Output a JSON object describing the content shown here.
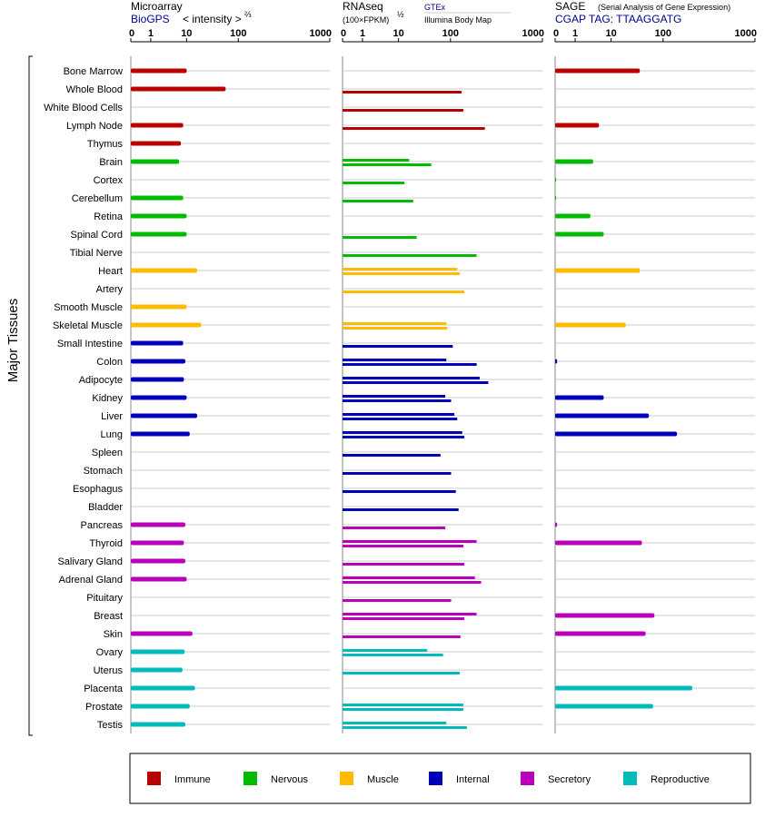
{
  "y_axis_label": "Major Tissues",
  "colors": {
    "Immune": "#bb0000",
    "Nervous": "#00bb00",
    "Muscle": "#ffbb00",
    "Internal": "#0000bb",
    "Secretory": "#bb00bb",
    "Reproductive": "#00bbbb"
  },
  "panels": [
    {
      "id": "microarray",
      "title": "Microarray",
      "subtitle": "BioGPS",
      "unit_label": "< intensity >",
      "unit_exponent": "⅔"
    },
    {
      "id": "rnaseq",
      "title": "RNAseq",
      "unit_label": "(100×FPKM)",
      "unit_exponent": "½",
      "source_top": "GTEx",
      "source_bottom": "Illumina Body Map"
    },
    {
      "id": "sage",
      "title": "SAGE",
      "note": "(Serial Analysis of Gene Expression)",
      "subtitle": "CGAP TAG: TTAAGGATG"
    }
  ],
  "ticks": [
    "0",
    "1",
    "10",
    "100",
    "1000"
  ],
  "legend": [
    {
      "label": "Immune",
      "color": "#bb0000"
    },
    {
      "label": "Nervous",
      "color": "#00bb00"
    },
    {
      "label": "Muscle",
      "color": "#ffbb00"
    },
    {
      "label": "Internal",
      "color": "#0000bb"
    },
    {
      "label": "Secretory",
      "color": "#bb00bb"
    },
    {
      "label": "Reproductive",
      "color": "#00bbbb"
    }
  ],
  "chart_data": {
    "type": "bar",
    "orientation": "horizontal",
    "x_scale": "log-like (0, 1, 10, 100, 1000)",
    "xlim": [
      0,
      1000
    ],
    "grid": true,
    "legend_position": "bottom",
    "tissues": [
      {
        "name": "Bone Marrow",
        "group": "Immune",
        "microarray": 4,
        "rnaseq": [],
        "sage": 12
      },
      {
        "name": "Whole Blood",
        "group": "Immune",
        "microarray": 18,
        "rnaseq": [
          45
        ],
        "sage": null
      },
      {
        "name": "White Blood Cells",
        "group": "Immune",
        "microarray": null,
        "rnaseq": [
          48
        ],
        "sage": null
      },
      {
        "name": "Lymph Node",
        "group": "Immune",
        "microarray": 3.5,
        "rnaseq": [
          110
        ],
        "sage": 2.5
      },
      {
        "name": "Thymus",
        "group": "Immune",
        "microarray": 3.2,
        "rnaseq": [],
        "sage": null
      },
      {
        "name": "Brain",
        "group": "Nervous",
        "microarray": 3,
        "rnaseq": [
          6,
          14
        ],
        "sage": 2
      },
      {
        "name": "Cortex",
        "group": "Nervous",
        "microarray": null,
        "rnaseq": [
          5
        ],
        "sage": 0.05
      },
      {
        "name": "Cerebellum",
        "group": "Nervous",
        "microarray": 3.5,
        "rnaseq": [
          7
        ],
        "sage": 0.05
      },
      {
        "name": "Retina",
        "group": "Nervous",
        "microarray": 4,
        "rnaseq": [],
        "sage": 1.8
      },
      {
        "name": "Spinal Cord",
        "group": "Nervous",
        "microarray": 4,
        "rnaseq": [
          8
        ],
        "sage": 3
      },
      {
        "name": "Tibial Nerve",
        "group": "Nervous",
        "microarray": null,
        "rnaseq": [
          80
        ],
        "sage": null
      },
      {
        "name": "Heart",
        "group": "Muscle",
        "microarray": 6,
        "rnaseq": [
          38,
          42
        ],
        "sage": 12
      },
      {
        "name": "Artery",
        "group": "Muscle",
        "microarray": null,
        "rnaseq": [
          50
        ],
        "sage": null
      },
      {
        "name": "Smooth Muscle",
        "group": "Muscle",
        "microarray": 4,
        "rnaseq": [],
        "sage": null
      },
      {
        "name": "Skeletal Muscle",
        "group": "Muscle",
        "microarray": 7,
        "rnaseq": [
          25,
          26
        ],
        "sage": 7
      },
      {
        "name": "Small Intestine",
        "group": "Internal",
        "microarray": 3.5,
        "rnaseq": [
          32
        ],
        "sage": null
      },
      {
        "name": "Colon",
        "group": "Internal",
        "microarray": 3.8,
        "rnaseq": [
          25,
          80
        ],
        "sage": 0.1
      },
      {
        "name": "Adipocyte",
        "group": "Internal",
        "microarray": 3.6,
        "rnaseq": [
          90,
          125
        ],
        "sage": null
      },
      {
        "name": "Kidney",
        "group": "Internal",
        "microarray": 4,
        "rnaseq": [
          24,
          30
        ],
        "sage": 3
      },
      {
        "name": "Liver",
        "group": "Internal",
        "microarray": 6,
        "rnaseq": [
          34,
          38
        ],
        "sage": 17
      },
      {
        "name": "Lung",
        "group": "Internal",
        "microarray": 4.5,
        "rnaseq": [
          46,
          50
        ],
        "sage": 50
      },
      {
        "name": "Spleen",
        "group": "Internal",
        "microarray": null,
        "rnaseq": [
          20
        ],
        "sage": null
      },
      {
        "name": "Stomach",
        "group": "Internal",
        "microarray": null,
        "rnaseq": [
          30
        ],
        "sage": null
      },
      {
        "name": "Esophagus",
        "group": "Internal",
        "microarray": null,
        "rnaseq": [
          36
        ],
        "sage": null
      },
      {
        "name": "Bladder",
        "group": "Internal",
        "microarray": null,
        "rnaseq": [
          40
        ],
        "sage": null
      },
      {
        "name": "Pancreas",
        "group": "Secretory",
        "microarray": 3.8,
        "rnaseq": [
          24
        ],
        "sage": 0.1
      },
      {
        "name": "Thyroid",
        "group": "Secretory",
        "microarray": 3.6,
        "rnaseq": [
          80,
          48
        ],
        "sage": 13
      },
      {
        "name": "Salivary Gland",
        "group": "Secretory",
        "microarray": 3.8,
        "rnaseq": [
          50
        ],
        "sage": null
      },
      {
        "name": "Adrenal Gland",
        "group": "Secretory",
        "microarray": 4,
        "rnaseq": [
          75,
          95
        ],
        "sage": null
      },
      {
        "name": "Pituitary",
        "group": "Secretory",
        "microarray": null,
        "rnaseq": [
          30
        ],
        "sage": null
      },
      {
        "name": "Breast",
        "group": "Secretory",
        "microarray": null,
        "rnaseq": [
          80,
          50
        ],
        "sage": 21
      },
      {
        "name": "Skin",
        "group": "Secretory",
        "microarray": 5,
        "rnaseq": [
          43
        ],
        "sage": 15
      },
      {
        "name": "Ovary",
        "group": "Reproductive",
        "microarray": 3.7,
        "rnaseq": [
          12,
          22
        ],
        "sage": null
      },
      {
        "name": "Uterus",
        "group": "Reproductive",
        "microarray": 3.4,
        "rnaseq": [
          42
        ],
        "sage": null
      },
      {
        "name": "Placenta",
        "group": "Reproductive",
        "microarray": 5.5,
        "rnaseq": [],
        "sage": 90
      },
      {
        "name": "Prostate",
        "group": "Reproductive",
        "microarray": 4.5,
        "rnaseq": [
          48,
          48
        ],
        "sage": 20
      },
      {
        "name": "Testis",
        "group": "Reproductive",
        "microarray": 3.8,
        "rnaseq": [
          25,
          55
        ],
        "sage": null
      }
    ]
  }
}
